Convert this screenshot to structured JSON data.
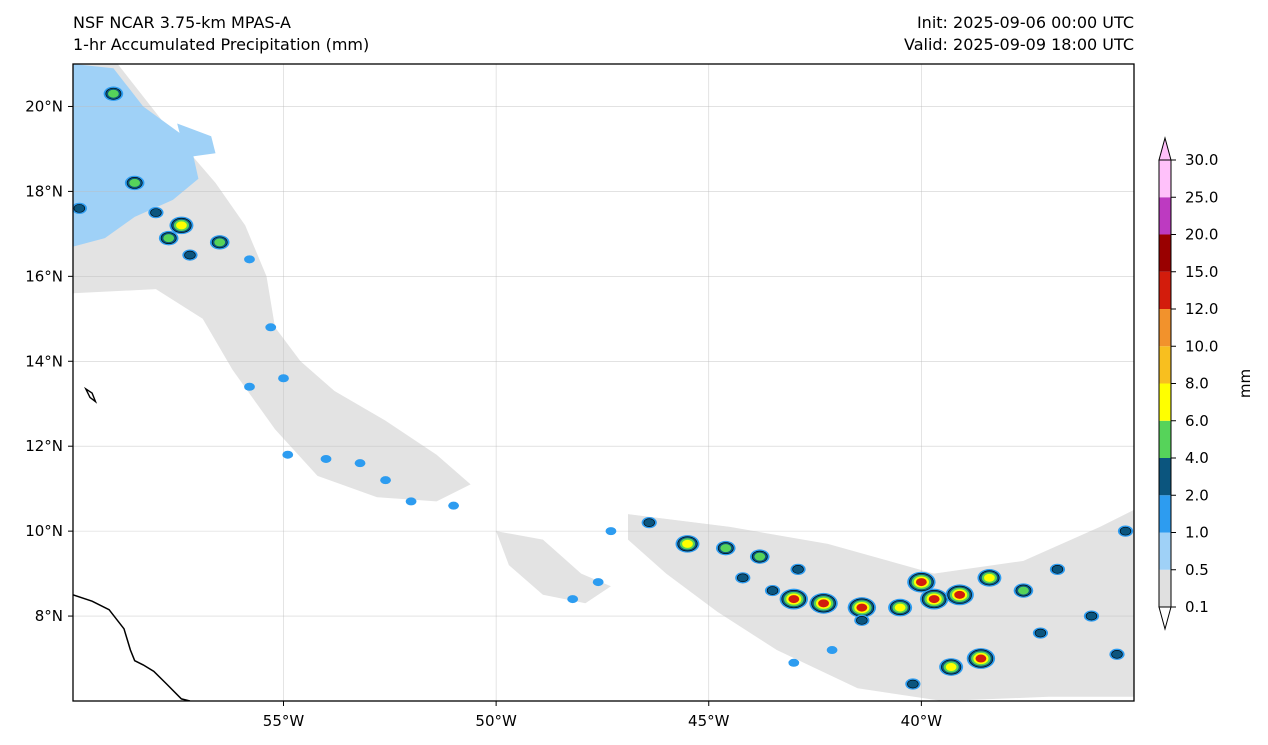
{
  "header": {
    "model": "NSF NCAR 3.75-km MPAS-A",
    "field": "1-hr Accumulated Precipitation (mm)",
    "init": "Init: 2025-09-06 00:00 UTC",
    "valid": "Valid: 2025-09-09 18:00 UTC"
  },
  "map": {
    "lon_range": [
      -59.95,
      -35.0
    ],
    "lat_range": [
      6.0,
      21.0
    ],
    "gridlines": true,
    "lon_ticks": [
      {
        "value": -55,
        "label": "55°W"
      },
      {
        "value": -50,
        "label": "50°W"
      },
      {
        "value": -45,
        "label": "45°W"
      },
      {
        "value": -40,
        "label": "40°W"
      }
    ],
    "lat_ticks": [
      {
        "value": 20,
        "label": "20°N"
      },
      {
        "value": 18,
        "label": "18°N"
      },
      {
        "value": 16,
        "label": "16°N"
      },
      {
        "value": 14,
        "label": "14°N"
      },
      {
        "value": 12,
        "label": "12°N"
      },
      {
        "value": 10,
        "label": "10°N"
      },
      {
        "value": 8,
        "label": "8°N"
      }
    ],
    "light_precip_regions": [
      [
        [
          -59.95,
          21.0
        ],
        [
          -58.9,
          21.0
        ],
        [
          -57.8,
          19.6
        ],
        [
          -56.6,
          18.2
        ],
        [
          -55.9,
          17.2
        ],
        [
          -55.4,
          16.0
        ],
        [
          -55.2,
          14.8
        ],
        [
          -54.6,
          14.0
        ],
        [
          -53.8,
          13.3
        ],
        [
          -52.6,
          12.6
        ],
        [
          -51.4,
          11.8
        ],
        [
          -50.6,
          11.1
        ],
        [
          -51.4,
          10.7
        ],
        [
          -52.8,
          10.8
        ],
        [
          -54.2,
          11.3
        ],
        [
          -55.2,
          12.4
        ],
        [
          -56.2,
          13.8
        ],
        [
          -56.9,
          15.0
        ],
        [
          -58.0,
          15.7
        ],
        [
          -59.95,
          15.6
        ]
      ],
      [
        [
          -46.9,
          10.4
        ],
        [
          -44.5,
          10.1
        ],
        [
          -42.2,
          9.7
        ],
        [
          -39.7,
          9.0
        ],
        [
          -37.6,
          9.3
        ],
        [
          -35.8,
          10.1
        ],
        [
          -35.0,
          10.5
        ],
        [
          -35.0,
          6.1
        ],
        [
          -37.0,
          6.1
        ],
        [
          -39.5,
          6.0
        ],
        [
          -41.5,
          6.3
        ],
        [
          -43.4,
          7.2
        ],
        [
          -44.8,
          8.1
        ],
        [
          -46.0,
          9.0
        ],
        [
          -46.9,
          9.8
        ]
      ],
      [
        [
          -50.0,
          10.0
        ],
        [
          -48.9,
          9.8
        ],
        [
          -48.0,
          9.0
        ],
        [
          -47.3,
          8.7
        ],
        [
          -47.9,
          8.3
        ],
        [
          -48.9,
          8.5
        ],
        [
          -49.7,
          9.2
        ]
      ]
    ],
    "light_blue_regions": [
      [
        [
          -59.95,
          21.0
        ],
        [
          -59.0,
          20.9
        ],
        [
          -58.3,
          20.0
        ],
        [
          -57.2,
          19.2
        ],
        [
          -57.0,
          18.3
        ],
        [
          -57.6,
          17.8
        ],
        [
          -58.5,
          17.4
        ],
        [
          -59.2,
          16.9
        ],
        [
          -59.95,
          16.7
        ]
      ],
      [
        [
          -57.5,
          19.6
        ],
        [
          -56.7,
          19.3
        ],
        [
          -56.6,
          18.9
        ],
        [
          -57.3,
          18.8
        ]
      ]
    ],
    "cells": [
      {
        "lon": -59.0,
        "lat": 20.3,
        "level": 3
      },
      {
        "lon": -58.5,
        "lat": 18.2,
        "level": 3
      },
      {
        "lon": -58.0,
        "lat": 17.5,
        "level": 2
      },
      {
        "lon": -57.4,
        "lat": 17.2,
        "level": 4
      },
      {
        "lon": -57.7,
        "lat": 16.9,
        "level": 3
      },
      {
        "lon": -57.2,
        "lat": 16.5,
        "level": 2
      },
      {
        "lon": -56.5,
        "lat": 16.8,
        "level": 3
      },
      {
        "lon": -55.8,
        "lat": 16.4,
        "level": 1
      },
      {
        "lon": -59.8,
        "lat": 17.6,
        "level": 2
      },
      {
        "lon": -55.3,
        "lat": 14.8,
        "level": 1
      },
      {
        "lon": -55.0,
        "lat": 13.6,
        "level": 1
      },
      {
        "lon": -54.9,
        "lat": 11.8,
        "level": 1
      },
      {
        "lon": -54.0,
        "lat": 11.7,
        "level": 1
      },
      {
        "lon": -53.2,
        "lat": 11.6,
        "level": 1
      },
      {
        "lon": -52.6,
        "lat": 11.2,
        "level": 1
      },
      {
        "lon": -52.0,
        "lat": 10.7,
        "level": 1
      },
      {
        "lon": -51.0,
        "lat": 10.6,
        "level": 1
      },
      {
        "lon": -55.8,
        "lat": 13.4,
        "level": 1
      },
      {
        "lon": -47.3,
        "lat": 10.0,
        "level": 1
      },
      {
        "lon": -46.4,
        "lat": 10.2,
        "level": 2
      },
      {
        "lon": -45.5,
        "lat": 9.7,
        "level": 4
      },
      {
        "lon": -44.6,
        "lat": 9.6,
        "level": 3
      },
      {
        "lon": -43.8,
        "lat": 9.4,
        "level": 3
      },
      {
        "lon": -42.9,
        "lat": 9.1,
        "level": 2
      },
      {
        "lon": -44.2,
        "lat": 8.9,
        "level": 2
      },
      {
        "lon": -43.5,
        "lat": 8.6,
        "level": 2
      },
      {
        "lon": -43.0,
        "lat": 8.4,
        "level": 5
      },
      {
        "lon": -42.3,
        "lat": 8.3,
        "level": 5
      },
      {
        "lon": -41.4,
        "lat": 8.2,
        "level": 5
      },
      {
        "lon": -40.5,
        "lat": 8.2,
        "level": 4
      },
      {
        "lon": -39.7,
        "lat": 8.4,
        "level": 5
      },
      {
        "lon": -40.0,
        "lat": 8.8,
        "level": 5
      },
      {
        "lon": -39.1,
        "lat": 8.5,
        "level": 5
      },
      {
        "lon": -38.4,
        "lat": 8.9,
        "level": 4
      },
      {
        "lon": -37.6,
        "lat": 8.6,
        "level": 3
      },
      {
        "lon": -36.8,
        "lat": 9.1,
        "level": 2
      },
      {
        "lon": -35.2,
        "lat": 10.0,
        "level": 2
      },
      {
        "lon": -36.0,
        "lat": 8.0,
        "level": 2
      },
      {
        "lon": -37.2,
        "lat": 7.6,
        "level": 2
      },
      {
        "lon": -38.6,
        "lat": 7.0,
        "level": 5
      },
      {
        "lon": -39.3,
        "lat": 6.8,
        "level": 4
      },
      {
        "lon": -40.2,
        "lat": 6.4,
        "level": 2
      },
      {
        "lon": -35.4,
        "lat": 7.1,
        "level": 2
      },
      {
        "lon": -41.4,
        "lat": 7.9,
        "level": 2
      },
      {
        "lon": -42.1,
        "lat": 7.2,
        "level": 1
      },
      {
        "lon": -43.0,
        "lat": 6.9,
        "level": 1
      },
      {
        "lon": -48.2,
        "lat": 8.4,
        "level": 1
      },
      {
        "lon": -47.6,
        "lat": 8.8,
        "level": 1
      }
    ],
    "islands": [
      [
        [
          -59.65,
          13.35
        ],
        [
          -59.55,
          13.15
        ],
        [
          -59.42,
          13.05
        ],
        [
          -59.5,
          13.25
        ]
      ]
    ],
    "coastline": [
      [
        -59.95,
        8.5
      ],
      [
        -59.5,
        8.35
      ],
      [
        -59.1,
        8.15
      ],
      [
        -58.75,
        7.7
      ],
      [
        -58.6,
        7.2
      ],
      [
        -58.5,
        6.95
      ],
      [
        -58.3,
        6.85
      ],
      [
        -58.05,
        6.7
      ],
      [
        -57.75,
        6.4
      ],
      [
        -57.4,
        6.05
      ],
      [
        -57.2,
        6.0
      ]
    ]
  },
  "colorbar": {
    "unit_label": "mm",
    "levels": [
      "0.1",
      "0.5",
      "1.0",
      "2.0",
      "4.0",
      "6.0",
      "8.0",
      "10.0",
      "12.0",
      "15.0",
      "20.0",
      "25.0",
      "30.0"
    ],
    "colors": [
      "#e0e0e0",
      "#9fd1f7",
      "#2d9cf0",
      "#0b557e",
      "#56d35a",
      "#ffff00",
      "#f8bf1f",
      "#f2922c",
      "#d31c0c",
      "#990000",
      "#bd3ac1",
      "#ffc1fa"
    ]
  }
}
